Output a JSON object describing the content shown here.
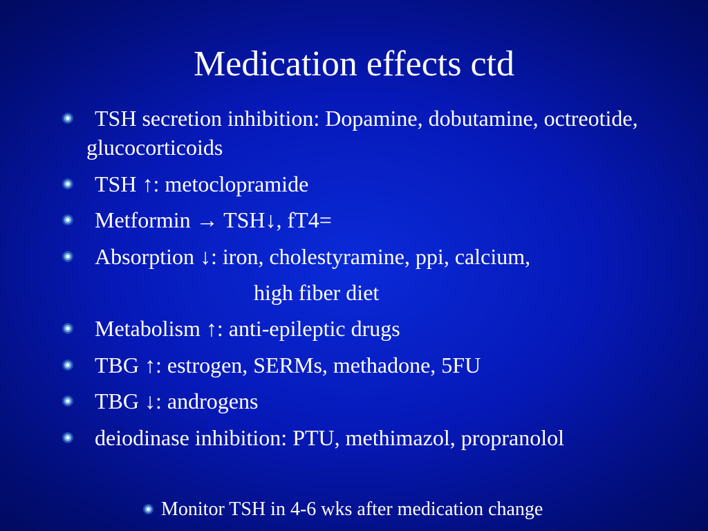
{
  "title": "Medication effects  ctd",
  "bullets": [
    {
      "text": "TSH secretion inhibition: Dopamine, dobutamine, octreotide, glucocorticoids"
    },
    {
      "text": "TSH ↑: metoclopramide"
    },
    {
      "text": "Metformin → TSH↓, fT4="
    },
    {
      "text": "Absorption ↓: iron, cholestyramine, ppi, calcium,",
      "continuation": "high fiber diet"
    },
    {
      "text": "Metabolism ↑: anti-epileptic drugs"
    },
    {
      "text": "TBG ↑: estrogen, SERMs, methadone, 5FU"
    },
    {
      "text": "TBG ↓: androgens"
    },
    {
      "text": "deiodinase inhibition: PTU, methimazol, propranolol"
    }
  ],
  "footer": "Monitor TSH in 4-6 wks after medication change"
}
